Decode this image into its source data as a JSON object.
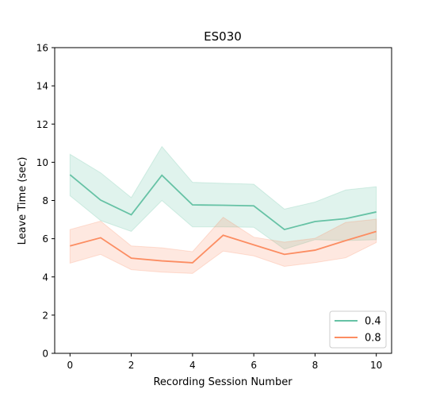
{
  "chart_data": {
    "type": "line",
    "title": "ES030",
    "xlabel": "Recording Session Number",
    "ylabel": "Leave Time (sec)",
    "xlim": [
      -0.5,
      10.5
    ],
    "ylim": [
      0,
      16
    ],
    "xticks": [
      0,
      2,
      4,
      6,
      8,
      10
    ],
    "yticks": [
      0,
      2,
      4,
      6,
      8,
      10,
      12,
      14,
      16
    ],
    "grid": false,
    "legend_position": "lower-right",
    "x": [
      0,
      1,
      2,
      3,
      4,
      5,
      6,
      7,
      8,
      9,
      10
    ],
    "series": [
      {
        "name": "0.4",
        "color": "#66c2a5",
        "values": [
          9.35,
          8.02,
          7.25,
          9.32,
          7.77,
          7.75,
          7.72,
          6.48,
          6.9,
          7.05,
          7.4
        ],
        "lower": [
          8.25,
          6.95,
          6.38,
          8.0,
          6.62,
          6.62,
          6.6,
          5.45,
          5.95,
          5.9,
          5.95
        ],
        "upper": [
          10.42,
          9.45,
          8.15,
          10.82,
          8.95,
          8.9,
          8.85,
          7.55,
          7.92,
          8.55,
          8.72
        ]
      },
      {
        "name": "0.8",
        "color": "#fc8d62",
        "values": [
          5.62,
          6.05,
          4.98,
          4.84,
          4.74,
          6.18,
          5.68,
          5.18,
          5.4,
          5.9,
          6.38
        ],
        "lower": [
          4.72,
          5.18,
          4.38,
          4.25,
          4.18,
          5.35,
          5.1,
          4.55,
          4.75,
          5.0,
          5.8
        ],
        "upper": [
          6.48,
          6.92,
          5.62,
          5.52,
          5.32,
          7.12,
          6.08,
          5.82,
          6.02,
          6.85,
          7.02
        ]
      }
    ]
  }
}
